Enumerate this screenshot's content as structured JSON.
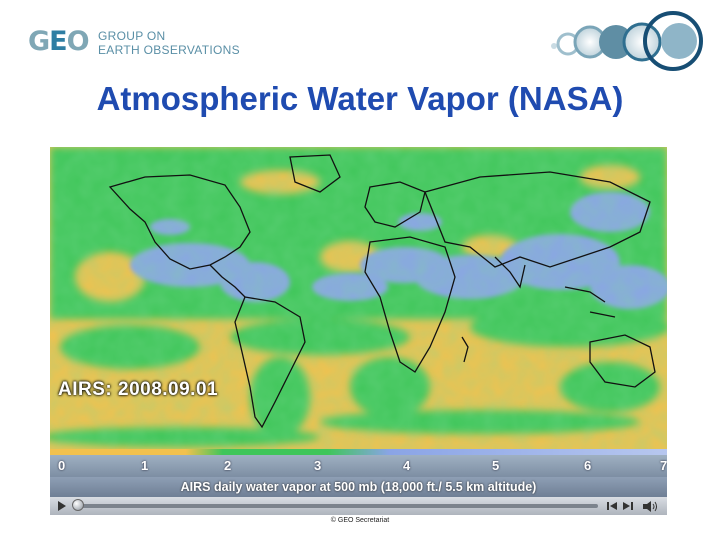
{
  "header": {
    "logo_mark": "GEO",
    "logo_line1": "GROUP ON",
    "logo_line2": "EARTH OBSERVATIONS",
    "title": "Atmospheric Water Vapor (NASA)"
  },
  "video": {
    "overlay_label": "AIRS: 2008.09.01",
    "scale_ticks": [
      "0",
      "1",
      "2",
      "3",
      "4",
      "5",
      "6",
      "7"
    ],
    "caption": "AIRS daily water vapor at 500 mb (18,000 ft./ 5.5 km altitude)",
    "controls": {
      "play_icon": "play-icon",
      "prev_icon": "skip-back-icon",
      "next_icon": "skip-forward-icon",
      "volume_icon": "volume-icon",
      "progress": 0.0
    },
    "colors": {
      "dry": "#f2c14e",
      "mid": "#3fc65a",
      "wet": "#8aa4e6",
      "land_outline": "#111111"
    }
  },
  "footer": {
    "copyright": "© GEO Secretariat"
  }
}
